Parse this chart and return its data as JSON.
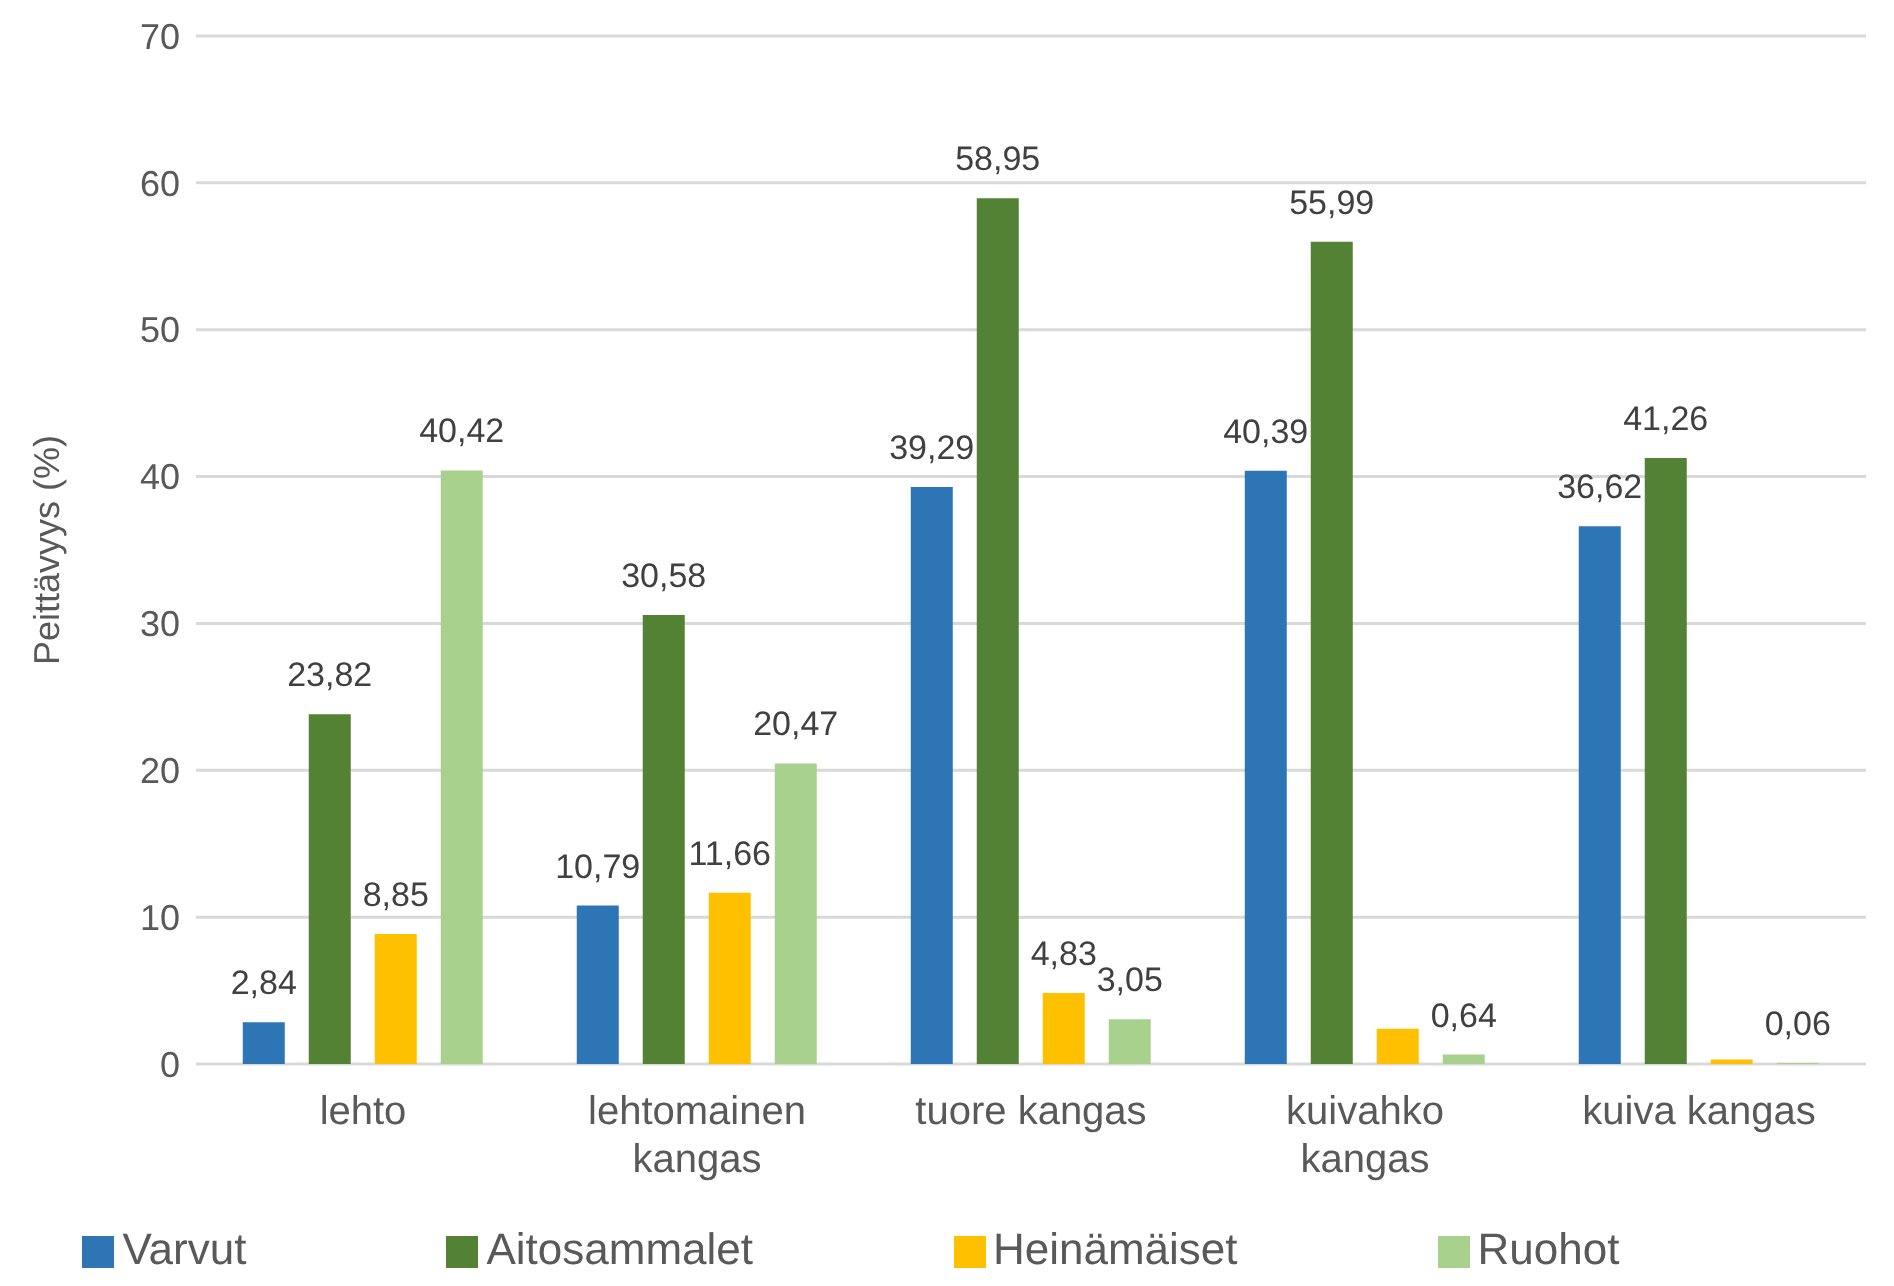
{
  "chart_data": {
    "type": "bar",
    "ylabel": "Peittävyys (%)",
    "categories": [
      "lehto",
      "lehtomainen kangas",
      "tuore kangas",
      "kuivahko kangas",
      "kuiva kangas"
    ],
    "series": [
      {
        "name": "Varvut",
        "color": "#2e75b6",
        "values": [
          2.84,
          10.79,
          39.29,
          40.39,
          36.62
        ],
        "value_labels": [
          "2,84",
          "10,79",
          "39,29",
          "40,39",
          "36,62"
        ]
      },
      {
        "name": "Aitosammalet",
        "color": "#548235",
        "values": [
          23.82,
          30.58,
          58.95,
          55.99,
          41.26
        ],
        "value_labels": [
          "23,82",
          "30,58",
          "58,95",
          "55,99",
          "41,26"
        ]
      },
      {
        "name": "Heinämäiset",
        "color": "#ffc000",
        "values": [
          8.85,
          11.66,
          4.83,
          2.4,
          0.3
        ],
        "value_labels": [
          "8,85",
          "11,66",
          "4,83",
          null,
          null
        ]
      },
      {
        "name": "Ruohot",
        "color": "#a9d18e",
        "values": [
          40.42,
          20.47,
          3.05,
          0.64,
          0.06
        ],
        "value_labels": [
          "40,42",
          "20,47",
          "3,05",
          "0,64",
          "0,06"
        ]
      }
    ],
    "ylim": [
      0,
      70
    ],
    "yticks": [
      0,
      10,
      20,
      30,
      40,
      50,
      60,
      70
    ],
    "grid": "y",
    "legend": "bottom"
  }
}
